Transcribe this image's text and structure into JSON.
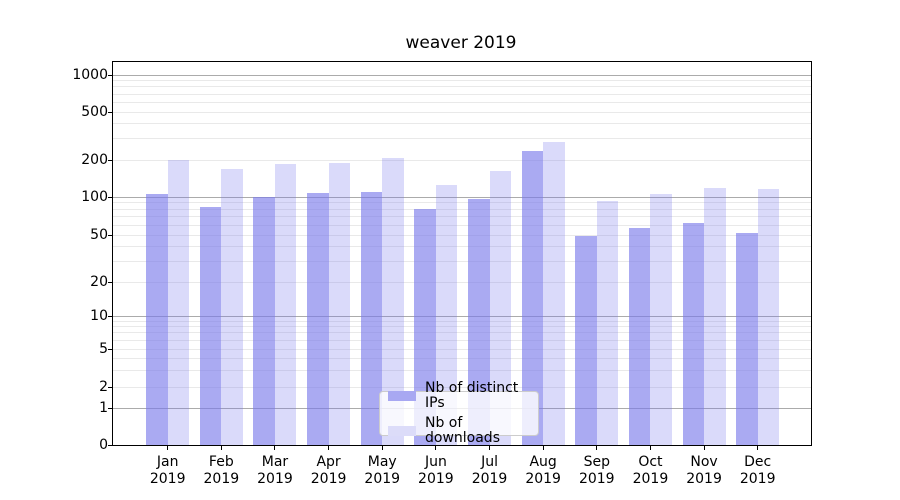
{
  "title": "weaver 2019",
  "legend": {
    "items": [
      {
        "label": "Nb of distinct IPs",
        "color": "#a8a8f2"
      },
      {
        "label": "Nb of downloads",
        "color": "#dcdcf9"
      }
    ]
  },
  "y_axis": {
    "ticks": [
      1000,
      500,
      200,
      100,
      50,
      20,
      10,
      5,
      2,
      1,
      0
    ]
  },
  "x_axis": {
    "months": [
      "Jan",
      "Feb",
      "Mar",
      "Apr",
      "May",
      "Jun",
      "Jul",
      "Aug",
      "Sep",
      "Oct",
      "Nov",
      "Dec"
    ],
    "year": "2019"
  },
  "chart_data": {
    "type": "bar",
    "title": "weaver 2019",
    "categories": [
      "Jan 2019",
      "Feb 2019",
      "Mar 2019",
      "Apr 2019",
      "May 2019",
      "Jun 2019",
      "Jul 2019",
      "Aug 2019",
      "Sep 2019",
      "Oct 2019",
      "Nov 2019",
      "Dec 2019"
    ],
    "series": [
      {
        "name": "Nb of distinct IPs",
        "values": [
          105,
          84,
          100,
          107,
          110,
          81,
          97,
          240,
          49,
          57,
          62,
          52
        ],
        "fill": "rgba(120,120,235,0.63)",
        "legend_color": "#a8a8f2"
      },
      {
        "name": "Nb of downloads",
        "values": [
          200,
          170,
          188,
          190,
          210,
          126,
          163,
          285,
          93,
          105,
          118,
          117
        ],
        "fill": "rgba(120,120,235,0.27)",
        "legend_color": "#dcdcf9"
      }
    ],
    "yscale": "symlog",
    "y_ticks": [
      0,
      1,
      2,
      5,
      10,
      20,
      50,
      100,
      200,
      500,
      1000
    ],
    "ylim": [
      0,
      1285
    ],
    "grid": "both",
    "grid_major_color": "#ababab",
    "grid_minor_color": "#e9e9e9",
    "legend_position": "lower center"
  }
}
